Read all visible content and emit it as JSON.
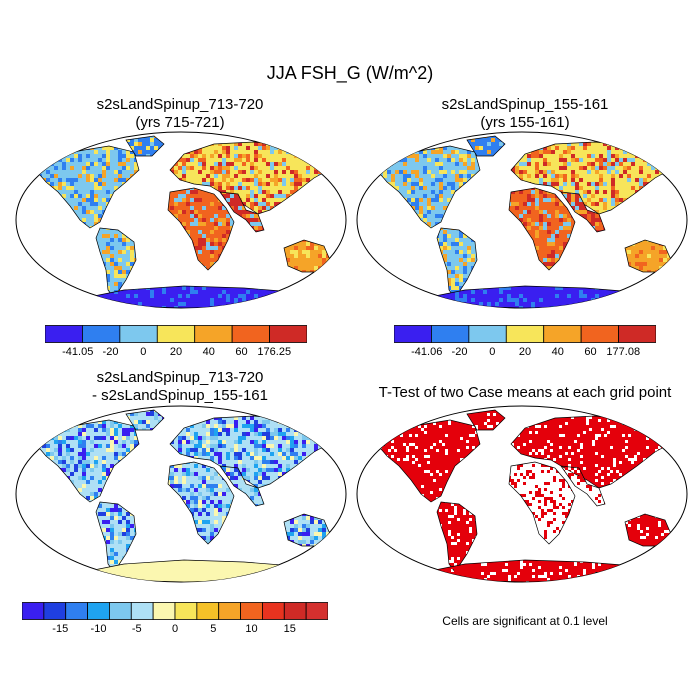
{
  "figure": {
    "title": "JJA FSH_G (W/m^2)"
  },
  "panels": [
    {
      "id": "case1",
      "title_line1": "s2sLandSpinup_713-720",
      "title_line2": "(yrs 715-721)",
      "colorbar": {
        "colors": [
          "#3a1ff0",
          "#2f7ff0",
          "#7dc8ee",
          "#f7e55a",
          "#f5a428",
          "#f1641f",
          "#cf2a26"
        ],
        "labels": [
          "-41.05",
          "-20",
          "0",
          "20",
          "40",
          "60",
          "176.25"
        ]
      }
    },
    {
      "id": "case2",
      "title_line1": "s2sLandSpinup_155-161",
      "title_line2": "(yrs 155-161)",
      "colorbar": {
        "colors": [
          "#3a1ff0",
          "#2f7ff0",
          "#7dc8ee",
          "#f7e55a",
          "#f5a428",
          "#f1641f",
          "#cf2a26"
        ],
        "labels": [
          "-41.06",
          "-20",
          "0",
          "20",
          "40",
          "60",
          "177.08"
        ]
      }
    },
    {
      "id": "difference",
      "title_line1": "s2sLandSpinup_713-720",
      "title_line2": "- s2sLandSpinup_155-161",
      "colorbar": {
        "colors": [
          "#3a1ff0",
          "#1f3fe0",
          "#2f7ff0",
          "#1fa3f0",
          "#7dc8ee",
          "#aee0f5",
          "#fbf7b0",
          "#f7e55a",
          "#f5c128",
          "#f5a428",
          "#f1641f",
          "#e8331f",
          "#cf2a26",
          "#d4302e"
        ],
        "labels": [
          "-15",
          "-10",
          "-5",
          "0",
          "5",
          "10",
          "15"
        ]
      }
    },
    {
      "id": "ttest",
      "title_line1": "T-Test of two Case means at each grid point",
      "title_line2": "",
      "footnote": "Cells are significant at 0.1 level"
    }
  ],
  "map_colors": {
    "ocean": "#ffffff",
    "outline": "#000000",
    "significant": "#e4000b",
    "antarctica_case": "#3a1ff0",
    "antarctica_diff": "#fbf7b0"
  }
}
